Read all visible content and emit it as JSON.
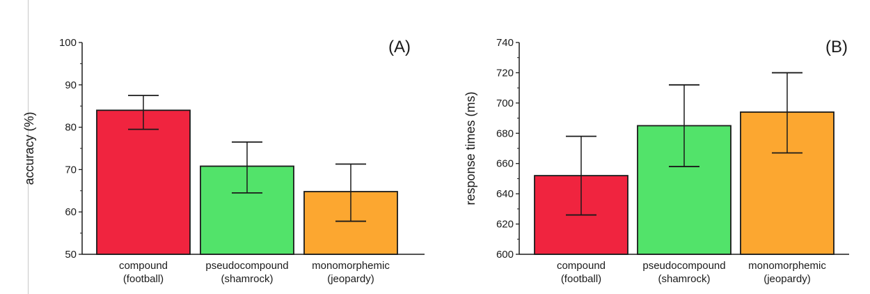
{
  "colors": {
    "compound": "#f0243f",
    "pseudocompound": "#52e36a",
    "monomorphemic": "#fca730",
    "axis": "#1a1a1a"
  },
  "chart_data": [
    {
      "type": "bar",
      "panel_label": "(A)",
      "ylabel": "accuracy (%)",
      "ylim": [
        50,
        100
      ],
      "yticks": [
        50,
        60,
        70,
        80,
        90,
        100
      ],
      "categories": [
        {
          "line1": "compound",
          "line2": "(football)"
        },
        {
          "line1": "pseudocompound",
          "line2": "(shamrock)"
        },
        {
          "line1": "monomorphemic",
          "line2": "(jeopardy)"
        }
      ],
      "values": [
        84,
        70.8,
        64.8
      ],
      "errors": [
        [
          79.5,
          87.5
        ],
        [
          64.5,
          76.5
        ],
        [
          57.8,
          71.3
        ]
      ],
      "grid": false
    },
    {
      "type": "bar",
      "panel_label": "(B)",
      "ylabel": "response times (ms)",
      "ylim": [
        600,
        740
      ],
      "yticks": [
        600,
        620,
        640,
        660,
        680,
        700,
        720,
        740
      ],
      "categories": [
        {
          "line1": "compound",
          "line2": "(football)"
        },
        {
          "line1": "pseudocompound",
          "line2": "(shamrock)"
        },
        {
          "line1": "monomorphemic",
          "line2": "(jeopardy)"
        }
      ],
      "values": [
        652,
        685,
        694
      ],
      "errors": [
        [
          626,
          678
        ],
        [
          658,
          712
        ],
        [
          667,
          720
        ]
      ],
      "grid": false
    }
  ]
}
